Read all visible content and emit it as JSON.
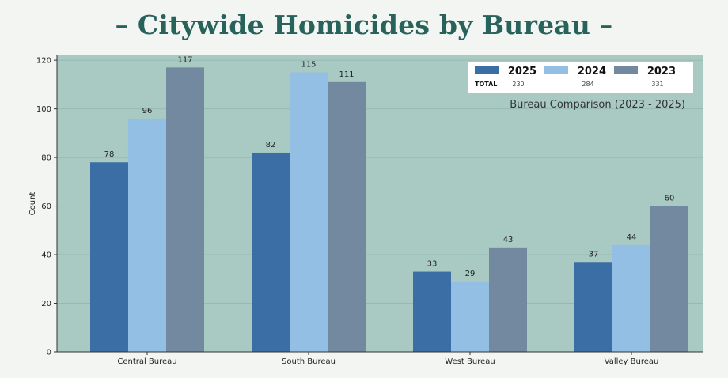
{
  "chart_data": {
    "type": "bar",
    "title": "– Citywide Homicides by Bureau –",
    "subtitle": "Bureau Comparison (2023 - 2025)",
    "xlabel": "",
    "ylabel": "Count",
    "ylim": [
      0,
      122
    ],
    "yticks": [
      0,
      20,
      40,
      60,
      80,
      100,
      120
    ],
    "grid": true,
    "legend_position": "top-right",
    "categories": [
      "Central Bureau",
      "South Bureau",
      "West Bureau",
      "Valley Bureau"
    ],
    "series": [
      {
        "name": "2025",
        "values": [
          78,
          82,
          33,
          37
        ],
        "color": "#3a6ea5"
      },
      {
        "name": "2024",
        "values": [
          96,
          115,
          29,
          44
        ],
        "color": "#92bfe3"
      },
      {
        "name": "2023",
        "values": [
          117,
          111,
          43,
          60
        ],
        "color": "#7289a0"
      }
    ],
    "totals_label": "TOTAL",
    "totals": [
      "230",
      "284",
      "331"
    ]
  },
  "colors": {
    "plot_background": "#a9cac2",
    "grid": "#98b9b1",
    "title": "#27635a",
    "legend_background": "#ffffff"
  }
}
